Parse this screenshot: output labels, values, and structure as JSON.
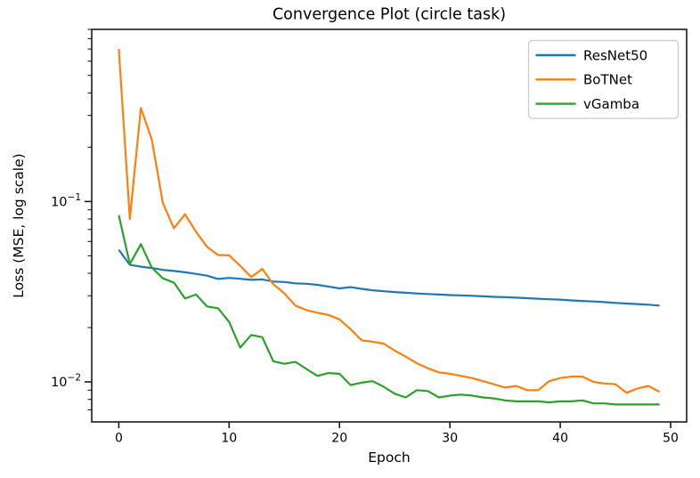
{
  "chart_data": {
    "type": "line",
    "title": "Convergence Plot (circle task)",
    "xlabel": "Epoch",
    "ylabel": "Loss (MSE, log scale)",
    "yscale": "log",
    "grid": false,
    "xlim": [
      -2.45,
      51.45
    ],
    "ylim": [
      0.006,
      0.9
    ],
    "x_ticks": [
      0,
      10,
      20,
      30,
      40,
      50
    ],
    "y_ticks": [
      {
        "value": 0.1,
        "base": "10",
        "exponent": "−1"
      },
      {
        "value": 0.01,
        "base": "10",
        "exponent": "−2"
      }
    ],
    "y_minor_ticks": [
      0.007,
      0.008,
      0.009,
      0.02,
      0.03,
      0.04,
      0.05,
      0.06,
      0.07,
      0.08,
      0.09,
      0.2,
      0.3,
      0.4,
      0.5,
      0.6,
      0.7,
      0.8,
      0.9
    ],
    "legend": {
      "position": "upper right",
      "entries": [
        "ResNet50",
        "BoTNet",
        "vGamba"
      ]
    },
    "x": [
      0,
      1,
      2,
      3,
      4,
      5,
      6,
      7,
      8,
      9,
      10,
      11,
      12,
      13,
      14,
      15,
      16,
      17,
      18,
      19,
      20,
      21,
      22,
      23,
      24,
      25,
      26,
      27,
      28,
      29,
      30,
      31,
      32,
      33,
      34,
      35,
      36,
      37,
      38,
      39,
      40,
      41,
      42,
      43,
      44,
      45,
      46,
      47,
      48,
      49
    ],
    "series": [
      {
        "name": "ResNet50",
        "color": "#1f77b4",
        "values": [
          0.054,
          0.0445,
          0.0435,
          0.0428,
          0.0418,
          0.0412,
          0.0405,
          0.0397,
          0.0388,
          0.0372,
          0.0377,
          0.0373,
          0.0368,
          0.037,
          0.036,
          0.0358,
          0.0352,
          0.035,
          0.0345,
          0.0338,
          0.033,
          0.0335,
          0.0328,
          0.0322,
          0.0318,
          0.0315,
          0.0312,
          0.0309,
          0.0307,
          0.0305,
          0.0303,
          0.0302,
          0.03,
          0.0298,
          0.0296,
          0.0295,
          0.0293,
          0.0291,
          0.0289,
          0.0287,
          0.0286,
          0.0283,
          0.0281,
          0.0279,
          0.0277,
          0.0274,
          0.0272,
          0.027,
          0.0268,
          0.0265
        ]
      },
      {
        "name": "BoTNet",
        "color": "#ff7f0e",
        "values": [
          0.7,
          0.08,
          0.33,
          0.22,
          0.098,
          0.071,
          0.085,
          0.068,
          0.056,
          0.0505,
          0.0503,
          0.044,
          0.0381,
          0.0423,
          0.0348,
          0.031,
          0.0265,
          0.025,
          0.0242,
          0.0235,
          0.0222,
          0.0196,
          0.017,
          0.0167,
          0.0163,
          0.0149,
          0.0138,
          0.0127,
          0.0119,
          0.0113,
          0.0111,
          0.0108,
          0.0105,
          0.0101,
          0.0097,
          0.0093,
          0.0095,
          0.009,
          0.009,
          0.0101,
          0.0105,
          0.0107,
          0.0107,
          0.01,
          0.0098,
          0.0097,
          0.0087,
          0.0092,
          0.0095,
          0.0088
        ]
      },
      {
        "name": "vGamba",
        "color": "#2ca02c",
        "values": [
          0.084,
          0.045,
          0.058,
          0.043,
          0.0375,
          0.0355,
          0.029,
          0.0305,
          0.0262,
          0.0256,
          0.0215,
          0.0155,
          0.0182,
          0.0177,
          0.013,
          0.0126,
          0.0129,
          0.0118,
          0.0108,
          0.0112,
          0.0111,
          0.0096,
          0.0099,
          0.0101,
          0.0094,
          0.0086,
          0.0082,
          0.009,
          0.0089,
          0.0082,
          0.0084,
          0.0085,
          0.0084,
          0.0082,
          0.0081,
          0.0079,
          0.0078,
          0.0078,
          0.0078,
          0.0077,
          0.0078,
          0.0078,
          0.0079,
          0.0076,
          0.0076,
          0.0075,
          0.0075,
          0.0075,
          0.0075,
          0.0075
        ]
      }
    ]
  }
}
